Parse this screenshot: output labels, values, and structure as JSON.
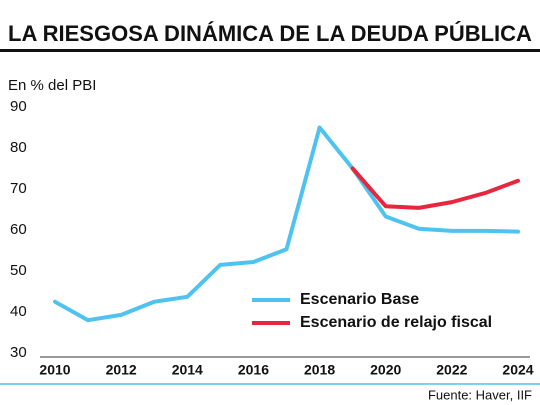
{
  "chart_data": {
    "type": "line",
    "title": "LA RIESGOSA DINÁMICA DE LA DEUDA PÚBLICA",
    "y_label": "En % del PBI",
    "source": "Fuente: Haver, IIF",
    "x": [
      2010,
      2011,
      2012,
      2013,
      2014,
      2015,
      2016,
      2017,
      2018,
      2019,
      2020,
      2021,
      2022,
      2023,
      2024
    ],
    "series": [
      {
        "name": "Escenario Base",
        "color": "#4fc3f0",
        "values": [
          42.5,
          38,
          39.3,
          42.5,
          43.7,
          51.5,
          52.2,
          55.3,
          85,
          75,
          63.3,
          60.3,
          59.8,
          59.8,
          59.6
        ]
      },
      {
        "name": "Escenario de relajo fiscal",
        "color": "#e8263d",
        "values": [
          null,
          null,
          null,
          null,
          null,
          null,
          null,
          null,
          null,
          75,
          65.8,
          65.4,
          66.8,
          69,
          72
        ]
      }
    ],
    "xlim": [
      2010,
      2024
    ],
    "xticks": [
      2010,
      2012,
      2014,
      2016,
      2018,
      2020,
      2022,
      2024
    ],
    "ylim": [
      30,
      90
    ],
    "yticks": [
      30,
      40,
      50,
      60,
      70,
      80,
      90
    ],
    "grid": false
  }
}
